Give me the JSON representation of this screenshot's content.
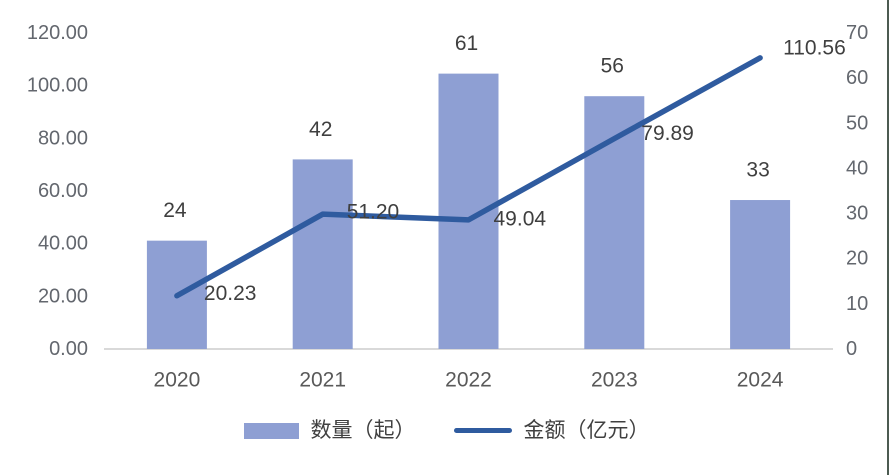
{
  "chart_data": {
    "type": "combo",
    "categories": [
      "2020",
      "2021",
      "2022",
      "2023",
      "2024"
    ],
    "series": [
      {
        "name": "数量（起）",
        "type": "bar",
        "axis": "right",
        "values": [
          24,
          42,
          61,
          56,
          33
        ],
        "data_labels": [
          "24",
          "42",
          "61",
          "56",
          "33"
        ]
      },
      {
        "name": "金额（亿元）",
        "type": "line",
        "axis": "left",
        "values": [
          20.23,
          51.2,
          49.04,
          79.89,
          110.56
        ],
        "data_labels": [
          "20.23",
          "51.20",
          "49.04",
          "79.89",
          "110.56"
        ]
      }
    ],
    "axes": {
      "left": {
        "min": 0,
        "max": 120,
        "step": 20,
        "tick_labels": [
          "0.00",
          "20.00",
          "40.00",
          "60.00",
          "80.00",
          "100.00",
          "120.00"
        ]
      },
      "right": {
        "min": 0,
        "max": 70,
        "step": 10,
        "tick_labels": [
          "0",
          "10",
          "20",
          "30",
          "40",
          "50",
          "60",
          "70"
        ]
      }
    },
    "legend": {
      "position": "bottom"
    },
    "grid": "off"
  },
  "colors": {
    "bar": "#8E9FD3",
    "line": "#2F5B9F",
    "axis_line": "#D9D9D9",
    "tick_text": "#63676E",
    "category_text": "#595959",
    "data_label_text": "#3F3F3F",
    "legend_text": "#404040",
    "right_border": "#4C5B51",
    "background": "#FFFFFF"
  }
}
